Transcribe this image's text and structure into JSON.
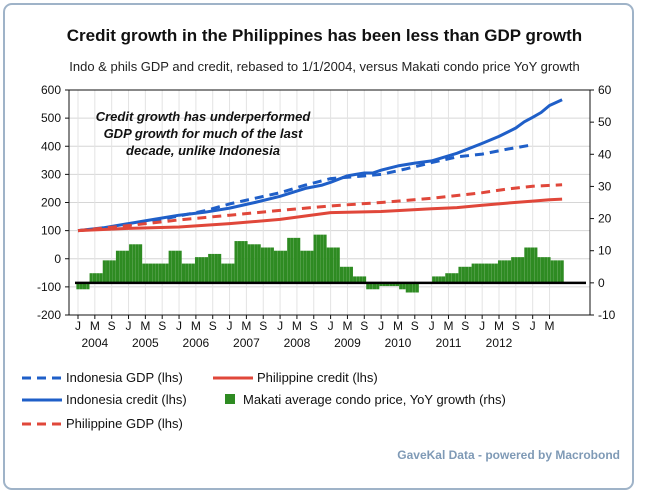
{
  "chart_data": {
    "type": "line",
    "title": "Credit growth in the Philippines has been less than GDP growth",
    "subtitle": "Indo & phils GDP and credit, rebased to 1/1/2004, versus Makati condo price YoY growth",
    "annotation": [
      "Credit growth has underperformed",
      "GDP growth for much of the last",
      "decade, unlike Indonesia"
    ],
    "source": "GaveKal Data - powered by Macrobond",
    "x_start": "2004-01",
    "month_ticks": [
      "J",
      "M",
      "S",
      "J",
      "M",
      "S",
      "J",
      "M",
      "S",
      "J",
      "M",
      "S",
      "J",
      "M",
      "S",
      "J",
      "M",
      "S",
      "J",
      "M",
      "S",
      "J",
      "M",
      "S",
      "J",
      "M",
      "S",
      "J",
      "M"
    ],
    "years": [
      "2004",
      "2005",
      "2006",
      "2007",
      "2008",
      "2009",
      "2010",
      "2011",
      "2012"
    ],
    "y_left": {
      "min": -200,
      "max": 600,
      "ticks": [
        "600",
        "500",
        "400",
        "300",
        "200",
        "100",
        "0",
        "-100",
        "-200"
      ]
    },
    "y_right": {
      "min": -10,
      "max": 60,
      "ticks": [
        "60",
        "50",
        "40",
        "30",
        "20",
        "10",
        "0",
        "-10"
      ]
    },
    "grid": true,
    "legend_position": "bottom",
    "series": [
      {
        "name": "Indonesia GDP (lhs)",
        "color": "#1f5fc8",
        "style": "dashed",
        "axis": "left",
        "points": [
          [
            0,
            100
          ],
          [
            6,
            108
          ],
          [
            12,
            120
          ],
          [
            18,
            135
          ],
          [
            24,
            152
          ],
          [
            30,
            170
          ],
          [
            36,
            195
          ],
          [
            42,
            215
          ],
          [
            48,
            235
          ],
          [
            54,
            262
          ],
          [
            60,
            285
          ],
          [
            66,
            292
          ],
          [
            72,
            300
          ],
          [
            78,
            320
          ],
          [
            84,
            342
          ],
          [
            90,
            362
          ],
          [
            96,
            372
          ],
          [
            102,
            390
          ],
          [
            108,
            405
          ]
        ]
      },
      {
        "name": "Indonesia credit (lhs)",
        "color": "#1f5fc8",
        "style": "solid",
        "axis": "left",
        "points": [
          [
            0,
            100
          ],
          [
            6,
            110
          ],
          [
            12,
            125
          ],
          [
            18,
            140
          ],
          [
            24,
            155
          ],
          [
            30,
            165
          ],
          [
            36,
            180
          ],
          [
            42,
            200
          ],
          [
            48,
            222
          ],
          [
            54,
            250
          ],
          [
            58,
            262
          ],
          [
            60,
            272
          ],
          [
            64,
            295
          ],
          [
            66,
            300
          ],
          [
            68,
            305
          ],
          [
            70,
            305
          ],
          [
            72,
            315
          ],
          [
            76,
            330
          ],
          [
            80,
            340
          ],
          [
            84,
            348
          ],
          [
            90,
            375
          ],
          [
            96,
            410
          ],
          [
            100,
            435
          ],
          [
            104,
            465
          ],
          [
            106,
            487
          ],
          [
            108,
            503
          ],
          [
            110,
            520
          ],
          [
            112,
            545
          ],
          [
            115,
            565
          ]
        ]
      },
      {
        "name": "Philippine credit (lhs)",
        "color": "#e0473a",
        "style": "solid",
        "axis": "left",
        "points": [
          [
            0,
            100
          ],
          [
            12,
            108
          ],
          [
            24,
            113
          ],
          [
            36,
            125
          ],
          [
            48,
            140
          ],
          [
            54,
            152
          ],
          [
            60,
            164
          ],
          [
            72,
            168
          ],
          [
            84,
            178
          ],
          [
            90,
            182
          ],
          [
            96,
            190
          ],
          [
            102,
            198
          ],
          [
            108,
            205
          ],
          [
            112,
            210
          ],
          [
            115,
            212
          ]
        ]
      },
      {
        "name": "Philippine GDP (lhs)",
        "color": "#e0473a",
        "style": "dashed",
        "axis": "left",
        "points": [
          [
            0,
            100
          ],
          [
            12,
            118
          ],
          [
            24,
            138
          ],
          [
            36,
            155
          ],
          [
            48,
            172
          ],
          [
            60,
            188
          ],
          [
            72,
            200
          ],
          [
            84,
            215
          ],
          [
            96,
            235
          ],
          [
            102,
            248
          ],
          [
            108,
            258
          ],
          [
            115,
            263
          ]
        ]
      },
      {
        "name": "Makati average condo price, YoY growth (rhs)",
        "color": "#2e8b22",
        "style": "bar",
        "axis": "right",
        "values": [
          -2,
          -2,
          -2,
          -2,
          3,
          3,
          3,
          3,
          7,
          7,
          7,
          7,
          10,
          10,
          10,
          10,
          12,
          12,
          12,
          12,
          6,
          6,
          6,
          6,
          6,
          6,
          6,
          6,
          10,
          10,
          10,
          10,
          6,
          6,
          6,
          6,
          8,
          8,
          8,
          8,
          9,
          9,
          9,
          9,
          6,
          6,
          6,
          6,
          13,
          13,
          13,
          13,
          12,
          12,
          12,
          12,
          11,
          11,
          11,
          11,
          10,
          10,
          10,
          10,
          14,
          14,
          14,
          14,
          10,
          10,
          10,
          10,
          15,
          15,
          15,
          15,
          11,
          11,
          11,
          11,
          5,
          5,
          5,
          5,
          2,
          2,
          2,
          2,
          -2,
          -2,
          -2,
          -2,
          -1,
          -1,
          -1,
          -1,
          -1,
          -1,
          -2,
          -2,
          -3,
          -3,
          -3,
          -3,
          0,
          0,
          0,
          0,
          2,
          2,
          2,
          2,
          3,
          3,
          3,
          3,
          5,
          5,
          5,
          5,
          6,
          6,
          6,
          6,
          6,
          6,
          6,
          6,
          7,
          7,
          7,
          7,
          8,
          8,
          8,
          8,
          11,
          11,
          11,
          11,
          8,
          8,
          8,
          8,
          7,
          7,
          7,
          7
        ]
      }
    ]
  }
}
